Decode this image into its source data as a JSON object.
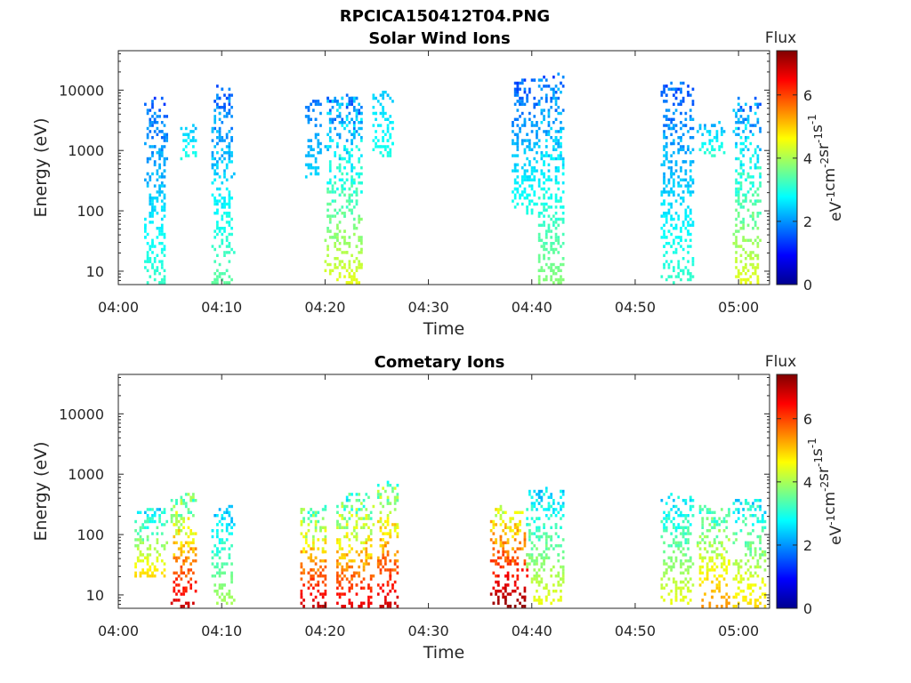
{
  "figure_title": "RPCICA150412T04.PNG",
  "chart_data": [
    {
      "type": "heatmap",
      "title": "Solar Wind Ions",
      "xlabel": "Time",
      "ylabel": "Energy (eV)",
      "xticks": [
        "04:00",
        "04:10",
        "04:20",
        "04:30",
        "04:40",
        "04:50",
        "05:00"
      ],
      "xlim_minutes": [
        0,
        63
      ],
      "yscale": "log",
      "yticks": [
        "10",
        "100",
        "1000",
        "10000"
      ],
      "ylim": [
        6,
        45000
      ],
      "colorbar": {
        "title": "Flux",
        "label": "eV-1cm-2sr-1s-1",
        "ticks": [
          "0",
          "2",
          "4",
          "6"
        ],
        "range": [
          0,
          7.4
        ],
        "colormap": "jet"
      },
      "clusters": [
        {
          "t": [
            2.5,
            4.5
          ],
          "e": [
            6,
            8000
          ],
          "flux": [
            1.2,
            3.2
          ]
        },
        {
          "t": [
            6.0,
            7.5
          ],
          "e": [
            800,
            3000
          ],
          "flux": [
            2.0,
            3.0
          ]
        },
        {
          "t": [
            9.0,
            11.0
          ],
          "e": [
            6,
            12000
          ],
          "flux": [
            1.2,
            3.5
          ]
        },
        {
          "t": [
            18.0,
            19.5
          ],
          "e": [
            400,
            8000
          ],
          "flux": [
            1.5,
            2.5
          ]
        },
        {
          "t": [
            20.0,
            23.5
          ],
          "e": [
            6,
            9000
          ],
          "flux": [
            1.2,
            4.5
          ]
        },
        {
          "t": [
            24.5,
            26.5
          ],
          "e": [
            800,
            10000
          ],
          "flux": [
            2.2,
            3.0
          ]
        },
        {
          "t": [
            38.0,
            40.5
          ],
          "e": [
            100,
            15000
          ],
          "flux": [
            1.2,
            3.0
          ]
        },
        {
          "t": [
            40.5,
            43.0
          ],
          "e": [
            6,
            20000
          ],
          "flux": [
            1.2,
            3.8
          ]
        },
        {
          "t": [
            52.5,
            55.5
          ],
          "e": [
            6,
            15000
          ],
          "flux": [
            1.2,
            3.2
          ]
        },
        {
          "t": [
            56.0,
            58.5
          ],
          "e": [
            800,
            3000
          ],
          "flux": [
            2.0,
            3.2
          ]
        },
        {
          "t": [
            59.5,
            62.0
          ],
          "e": [
            6,
            8000
          ],
          "flux": [
            1.2,
            4.5
          ]
        }
      ]
    },
    {
      "type": "heatmap",
      "title": "Cometary Ions",
      "xlabel": "Time",
      "ylabel": "Energy (eV)",
      "xticks": [
        "04:00",
        "04:10",
        "04:20",
        "04:30",
        "04:40",
        "04:50",
        "05:00"
      ],
      "xlim_minutes": [
        0,
        63
      ],
      "yscale": "log",
      "yticks": [
        "10",
        "100",
        "1000",
        "10000"
      ],
      "ylim": [
        6,
        45000
      ],
      "colorbar": {
        "title": "Flux",
        "label": "eV-1cm-2sr-1s-1",
        "ticks": [
          "0",
          "2",
          "4",
          "6"
        ],
        "range": [
          0,
          7.4
        ],
        "colormap": "jet"
      },
      "clusters": [
        {
          "t": [
            1.5,
            4.5
          ],
          "e": [
            20,
            300
          ],
          "flux": [
            2.0,
            5.0
          ]
        },
        {
          "t": [
            5.0,
            7.5
          ],
          "e": [
            6,
            500
          ],
          "flux": [
            2.5,
            7.0
          ]
        },
        {
          "t": [
            9.0,
            11.0
          ],
          "e": [
            8,
            300
          ],
          "flux": [
            2.0,
            4.0
          ]
        },
        {
          "t": [
            17.5,
            20.0
          ],
          "e": [
            6,
            300
          ],
          "flux": [
            2.5,
            7.0
          ]
        },
        {
          "t": [
            21.0,
            24.5
          ],
          "e": [
            6,
            500
          ],
          "flux": [
            2.2,
            6.8
          ]
        },
        {
          "t": [
            25.0,
            27.0
          ],
          "e": [
            6,
            800
          ],
          "flux": [
            2.5,
            7.0
          ]
        },
        {
          "t": [
            36.0,
            39.5
          ],
          "e": [
            6,
            300
          ],
          "flux": [
            3.5,
            7.4
          ]
        },
        {
          "t": [
            39.5,
            43.0
          ],
          "e": [
            8,
            600
          ],
          "flux": [
            2.0,
            4.5
          ]
        },
        {
          "t": [
            52.5,
            55.5
          ],
          "e": [
            8,
            500
          ],
          "flux": [
            2.0,
            4.5
          ]
        },
        {
          "t": [
            56.0,
            59.0
          ],
          "e": [
            6,
            300
          ],
          "flux": [
            2.5,
            5.5
          ]
        },
        {
          "t": [
            59.5,
            62.5
          ],
          "e": [
            6,
            400
          ],
          "flux": [
            2.0,
            5.0
          ]
        }
      ]
    }
  ]
}
